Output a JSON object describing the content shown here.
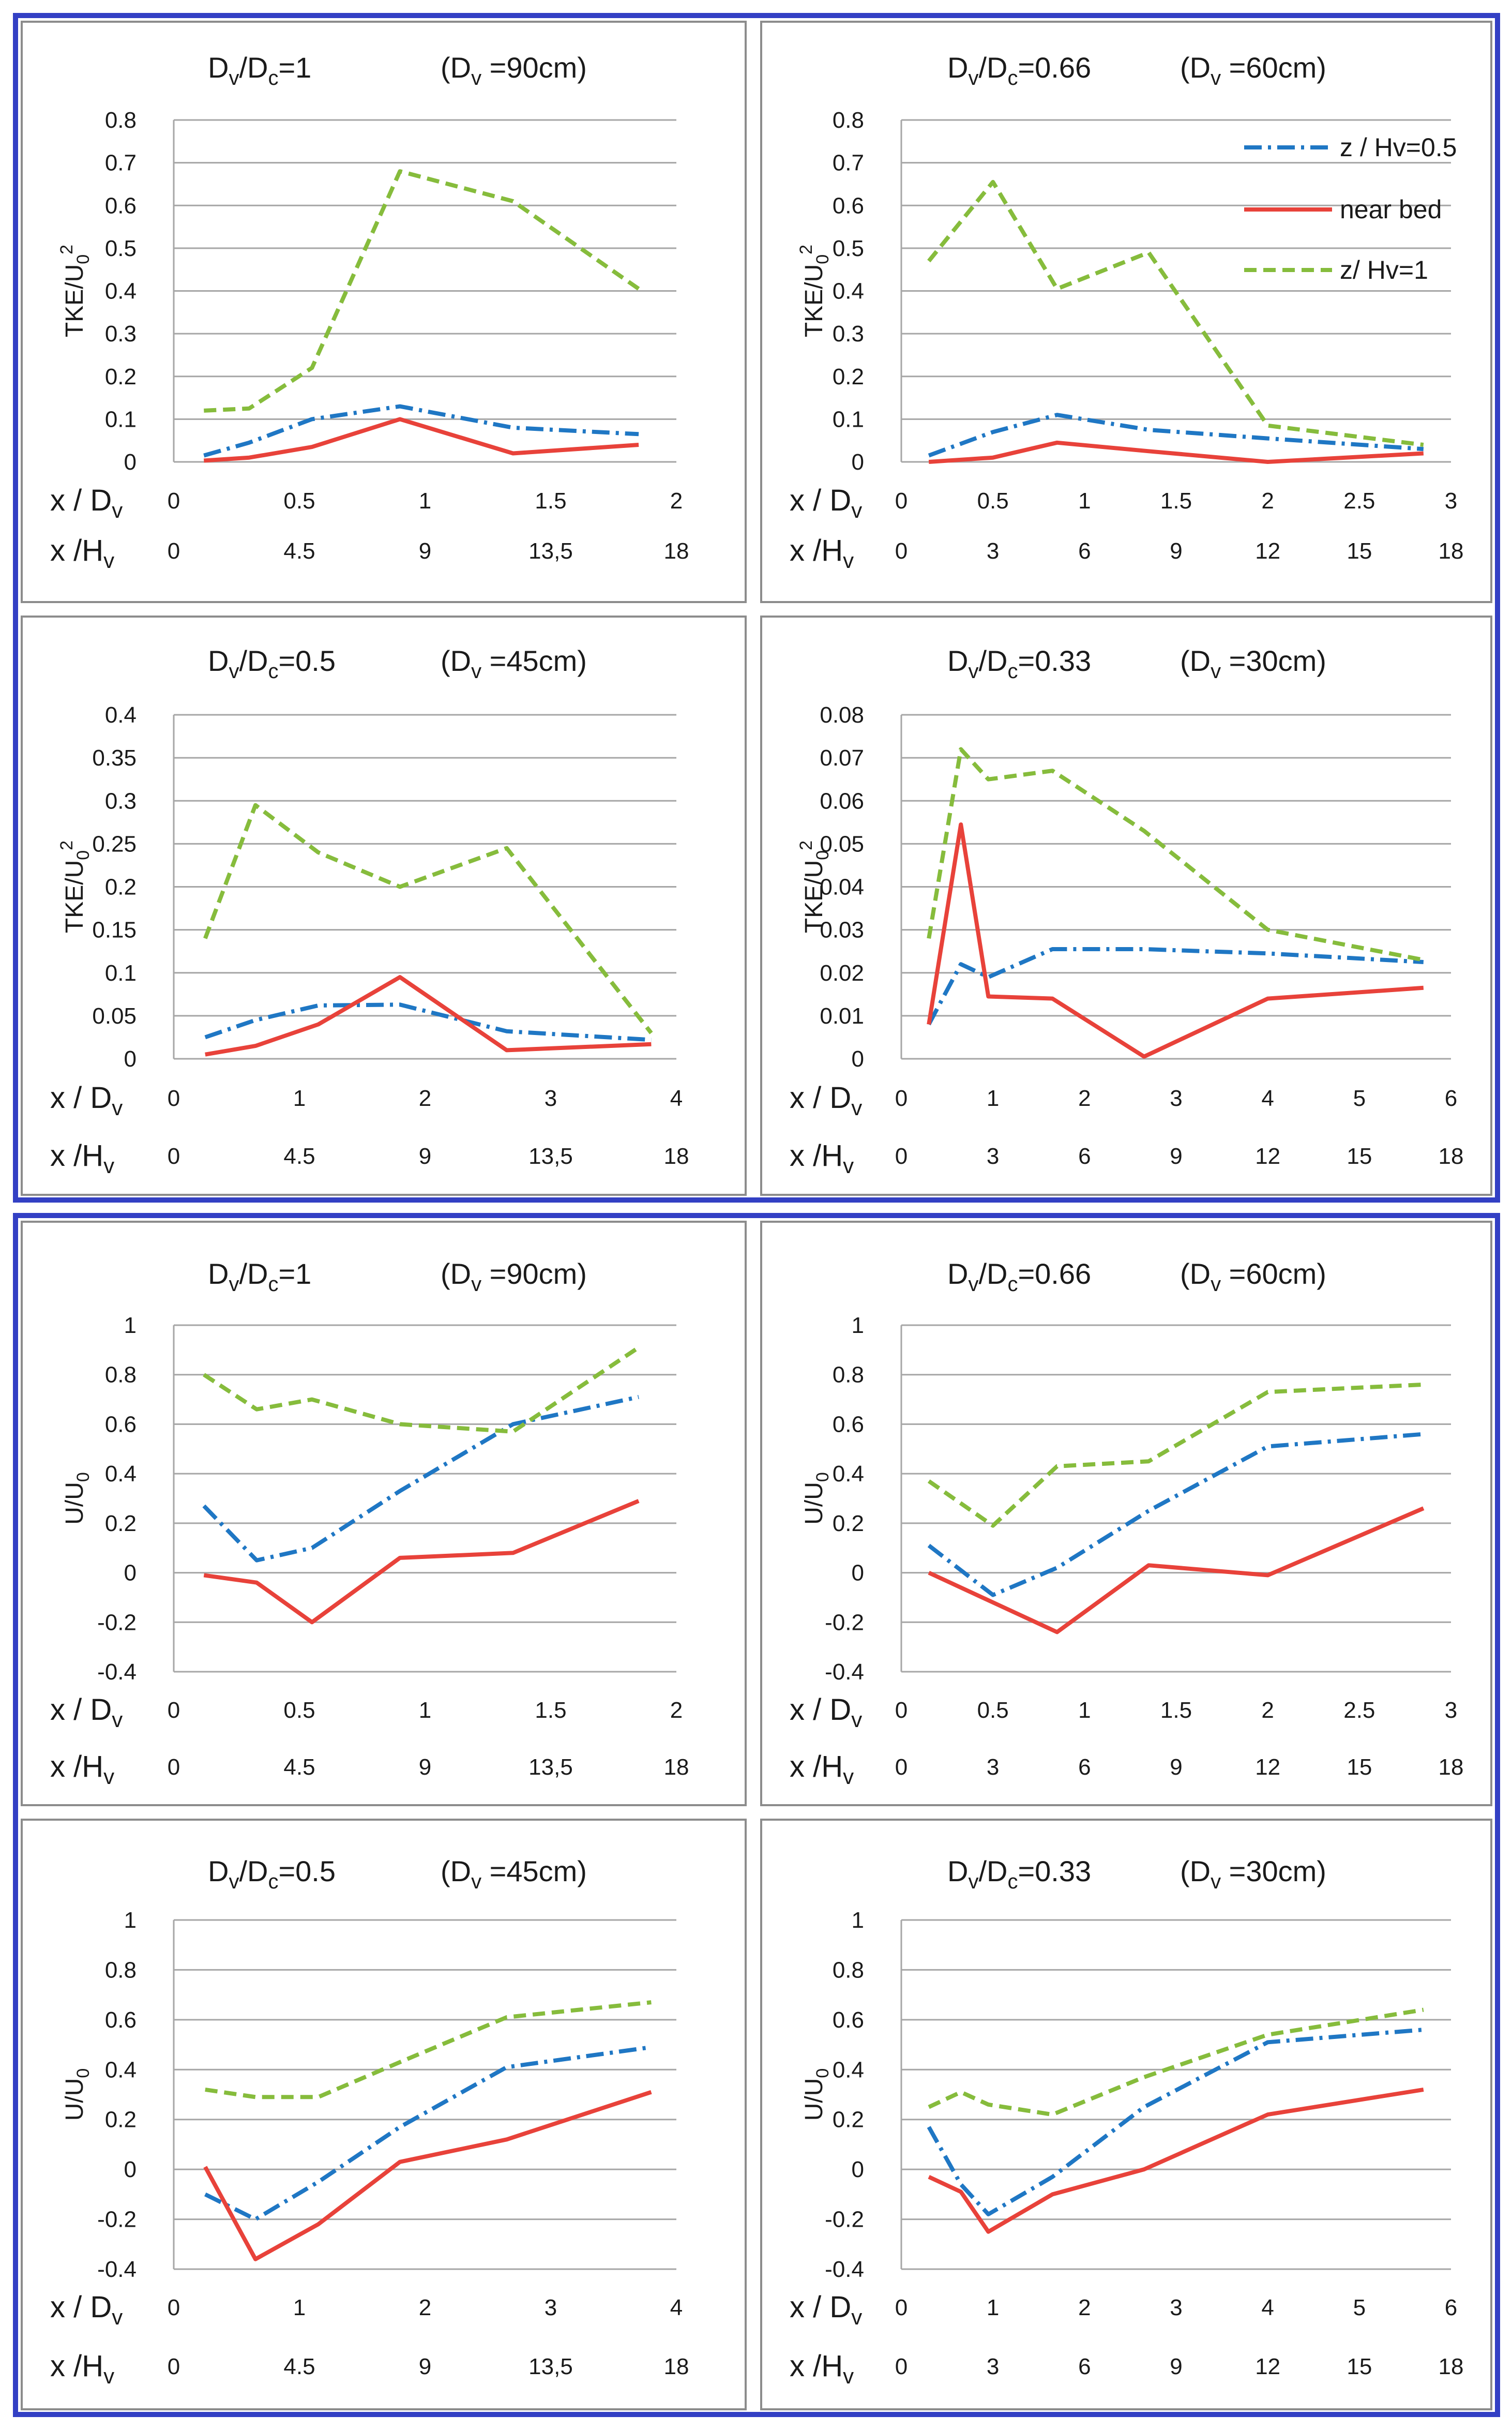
{
  "figure": {
    "legend": {
      "entries": [
        {
          "label": "z / Hv=0.5",
          "series": "s05"
        },
        {
          "label": "near bed",
          "series": "bed"
        },
        {
          "label": "z/ Hv=1",
          "series": "s1"
        }
      ]
    },
    "colors": {
      "frame": "#3340c4",
      "panel_border": "#8c8c8c",
      "grid": "#a6a6a6",
      "s05": "#1f77c4",
      "bed": "#e8423a",
      "s1": "#86bc3c",
      "text": "#1a1a1a"
    }
  },
  "chart_data": [
    {
      "id": "tke-dv90",
      "type": "line",
      "title": {
        "ratio": "1",
        "dv": "90cm"
      },
      "ylabel": "TKE/U0^2",
      "xlabel": "x / Dv",
      "x2label": "x /Hv",
      "xlim": [
        0,
        2
      ],
      "ylim": [
        0,
        0.8
      ],
      "xticks": [
        "0",
        "0.5",
        "1",
        "1.5",
        "2"
      ],
      "yticks": [
        "0",
        "0.1",
        "0.2",
        "0.3",
        "0.4",
        "0.5",
        "0.6",
        "0.7",
        "0.8"
      ],
      "x2ticks": [
        "0",
        "4.5",
        "9",
        "13,5",
        "18"
      ],
      "series": [
        {
          "name": "z / Hv=0.5",
          "key": "s05",
          "x": [
            0.12,
            0.3,
            0.55,
            0.9,
            1.35,
            1.85
          ],
          "y": [
            0.015,
            0.045,
            0.1,
            0.13,
            0.08,
            0.065
          ]
        },
        {
          "name": "near bed",
          "key": "bed",
          "x": [
            0.12,
            0.3,
            0.55,
            0.9,
            1.35,
            1.85
          ],
          "y": [
            0.003,
            0.01,
            0.035,
            0.1,
            0.02,
            0.04
          ]
        },
        {
          "name": "z/ Hv=1",
          "key": "s1",
          "x": [
            0.12,
            0.3,
            0.55,
            0.9,
            1.35,
            1.85
          ],
          "y": [
            0.12,
            0.125,
            0.22,
            0.68,
            0.61,
            0.405
          ]
        }
      ]
    },
    {
      "id": "tke-dv60",
      "type": "line",
      "title": {
        "ratio": "0.66",
        "dv": "60cm"
      },
      "ylabel": "TKE/U0^2",
      "xlabel": "x / Dv",
      "x2label": "x /Hv",
      "xlim": [
        0,
        3
      ],
      "ylim": [
        0,
        0.8
      ],
      "xticks": [
        "0",
        "0.5",
        "1",
        "1.5",
        "2",
        "2.5",
        "3"
      ],
      "yticks": [
        "0",
        "0.1",
        "0.2",
        "0.3",
        "0.4",
        "0.5",
        "0.6",
        "0.7",
        "0.8"
      ],
      "x2ticks": [
        "0",
        "3",
        "6",
        "9",
        "12",
        "15",
        "18"
      ],
      "legend": "top-right",
      "series": [
        {
          "name": "z / Hv=0.5",
          "key": "s05",
          "x": [
            0.15,
            0.5,
            0.85,
            1.35,
            2,
            2.85
          ],
          "y": [
            0.015,
            0.07,
            0.11,
            0.075,
            0.055,
            0.03
          ]
        },
        {
          "name": "near bed",
          "key": "bed",
          "x": [
            0.15,
            0.5,
            0.85,
            1.35,
            2,
            2.85
          ],
          "y": [
            0.0,
            0.01,
            0.045,
            0.025,
            0.0,
            0.02
          ]
        },
        {
          "name": "z/ Hv=1",
          "key": "s1",
          "x": [
            0.15,
            0.5,
            0.85,
            1.35,
            2,
            2.85
          ],
          "y": [
            0.47,
            0.655,
            0.405,
            0.49,
            0.085,
            0.04
          ]
        }
      ]
    },
    {
      "id": "tke-dv45",
      "type": "line",
      "title": {
        "ratio": "0.5",
        "dv": "45cm"
      },
      "ylabel": "TKE/U0^2",
      "xlabel": "x / Dv",
      "x2label": "x /Hv",
      "xlim": [
        0,
        4
      ],
      "ylim": [
        0,
        0.4
      ],
      "xticks": [
        "0",
        "1",
        "2",
        "3",
        "4"
      ],
      "yticks": [
        "0",
        "0.05",
        "0.1",
        "0.15",
        "0.2",
        "0.25",
        "0.3",
        "0.35",
        "0.4"
      ],
      "x2ticks": [
        "0",
        "4.5",
        "9",
        "13,5",
        "18"
      ],
      "series": [
        {
          "name": "z / Hv=0.5",
          "key": "s05",
          "x": [
            0.25,
            0.65,
            1.15,
            1.8,
            2.65,
            3.8
          ],
          "y": [
            0.025,
            0.045,
            0.062,
            0.063,
            0.032,
            0.022
          ]
        },
        {
          "name": "near bed",
          "key": "bed",
          "x": [
            0.25,
            0.65,
            1.15,
            1.8,
            2.65,
            3.8
          ],
          "y": [
            0.005,
            0.015,
            0.04,
            0.095,
            0.01,
            0.017
          ]
        },
        {
          "name": "z/ Hv=1",
          "key": "s1",
          "x": [
            0.25,
            0.65,
            1.15,
            1.8,
            2.65,
            3.8
          ],
          "y": [
            0.14,
            0.295,
            0.24,
            0.2,
            0.245,
            0.03
          ]
        }
      ]
    },
    {
      "id": "tke-dv30",
      "type": "line",
      "title": {
        "ratio": "0.33",
        "dv": "30cm"
      },
      "ylabel": "TKE/U0^2",
      "xlabel": "x / Dv",
      "x2label": "x /Hv",
      "xlim": [
        0,
        6
      ],
      "ylim": [
        0,
        0.08
      ],
      "xticks": [
        "0",
        "1",
        "2",
        "3",
        "4",
        "5",
        "6"
      ],
      "yticks": [
        "0",
        "0.01",
        "0.02",
        "0.03",
        "0.04",
        "0.05",
        "0.06",
        "0.07",
        "0.08"
      ],
      "x2ticks": [
        "0",
        "3",
        "6",
        "9",
        "12",
        "15",
        "18"
      ],
      "series": [
        {
          "name": "z / Hv=0.5",
          "key": "s05",
          "x": [
            0.3,
            0.65,
            0.95,
            1.65,
            2.65,
            4,
            5.7
          ],
          "y": [
            0.008,
            0.022,
            0.019,
            0.0255,
            0.0255,
            0.0245,
            0.0225
          ]
        },
        {
          "name": "near bed",
          "key": "bed",
          "x": [
            0.3,
            0.65,
            0.95,
            1.65,
            2.65,
            4,
            5.7
          ],
          "y": [
            0.008,
            0.0545,
            0.0145,
            0.014,
            0.0005,
            0.014,
            0.0165
          ]
        },
        {
          "name": "z/ Hv=1",
          "key": "s1",
          "x": [
            0.3,
            0.65,
            0.95,
            1.65,
            2.65,
            4,
            5.7
          ],
          "y": [
            0.028,
            0.072,
            0.065,
            0.067,
            0.053,
            0.03,
            0.023
          ]
        }
      ]
    },
    {
      "id": "u-dv90",
      "type": "line",
      "title": {
        "ratio": "1",
        "dv": "90cm"
      },
      "ylabel": "U/U0",
      "xlabel": "x / Dv",
      "x2label": "x /Hv",
      "xlim": [
        0,
        2
      ],
      "ylim": [
        -0.4,
        1
      ],
      "xticks": [
        "0",
        "0.5",
        "1",
        "1.5",
        "2"
      ],
      "yticks": [
        "-0.4",
        "-0.2",
        "0",
        "0.2",
        "0.4",
        "0.6",
        "0.8",
        "1"
      ],
      "x2ticks": [
        "0",
        "4.5",
        "9",
        "13,5",
        "18"
      ],
      "series": [
        {
          "name": "z / Hv=0.5",
          "key": "s05",
          "x": [
            0.12,
            0.33,
            0.55,
            0.9,
            1.35,
            1.85
          ],
          "y": [
            0.27,
            0.05,
            0.1,
            0.33,
            0.6,
            0.71
          ]
        },
        {
          "name": "near bed",
          "key": "bed",
          "x": [
            0.12,
            0.33,
            0.55,
            0.9,
            1.35,
            1.85
          ],
          "y": [
            -0.01,
            -0.04,
            -0.2,
            0.06,
            0.08,
            0.29
          ]
        },
        {
          "name": "z/ Hv=1",
          "key": "s1",
          "x": [
            0.12,
            0.33,
            0.55,
            0.9,
            1.35,
            1.85
          ],
          "y": [
            0.8,
            0.66,
            0.7,
            0.6,
            0.57,
            0.91
          ]
        }
      ]
    },
    {
      "id": "u-dv60",
      "type": "line",
      "title": {
        "ratio": "0.66",
        "dv": "60cm"
      },
      "ylabel": "U/U0",
      "xlabel": "x / Dv",
      "x2label": "x /Hv",
      "xlim": [
        0,
        3
      ],
      "ylim": [
        -0.4,
        1
      ],
      "xticks": [
        "0",
        "0.5",
        "1",
        "1.5",
        "2",
        "2.5",
        "3"
      ],
      "yticks": [
        "-0.4",
        "-0.2",
        "0",
        "0.2",
        "0.4",
        "0.6",
        "0.8",
        "1"
      ],
      "x2ticks": [
        "0",
        "3",
        "6",
        "9",
        "12",
        "15",
        "18"
      ],
      "series": [
        {
          "name": "z / Hv=0.5",
          "key": "s05",
          "x": [
            0.15,
            0.5,
            0.85,
            1.35,
            2,
            2.85
          ],
          "y": [
            0.11,
            -0.09,
            0.02,
            0.25,
            0.51,
            0.56
          ]
        },
        {
          "name": "near bed",
          "key": "bed",
          "x": [
            0.15,
            0.5,
            0.85,
            1.35,
            2,
            2.85
          ],
          "y": [
            0.0,
            -0.12,
            -0.24,
            0.03,
            -0.01,
            0.26
          ]
        },
        {
          "name": "z/ Hv=1",
          "key": "s1",
          "x": [
            0.15,
            0.5,
            0.85,
            1.35,
            2,
            2.85
          ],
          "y": [
            0.37,
            0.19,
            0.43,
            0.45,
            0.73,
            0.76
          ]
        }
      ]
    },
    {
      "id": "u-dv45",
      "type": "line",
      "title": {
        "ratio": "0.5",
        "dv": "45cm"
      },
      "ylabel": "U/U0",
      "xlabel": "x / Dv",
      "x2label": "x /Hv",
      "xlim": [
        0,
        4
      ],
      "ylim": [
        -0.4,
        1
      ],
      "xticks": [
        "0",
        "1",
        "2",
        "3",
        "4"
      ],
      "yticks": [
        "-0.4",
        "-0.2",
        "0",
        "0.2",
        "0.4",
        "0.6",
        "0.8",
        "1"
      ],
      "x2ticks": [
        "0",
        "4.5",
        "9",
        "13,5",
        "18"
      ],
      "series": [
        {
          "name": "z / Hv=0.5",
          "key": "s05",
          "x": [
            0.25,
            0.65,
            1.15,
            1.8,
            2.65,
            3.8
          ],
          "y": [
            -0.1,
            -0.2,
            -0.05,
            0.17,
            0.41,
            0.49
          ]
        },
        {
          "name": "near bed",
          "key": "bed",
          "x": [
            0.25,
            0.65,
            1.15,
            1.8,
            2.65,
            3.8
          ],
          "y": [
            0.01,
            -0.36,
            -0.22,
            0.03,
            0.12,
            0.31
          ]
        },
        {
          "name": "z/ Hv=1",
          "key": "s1",
          "x": [
            0.25,
            0.65,
            1.15,
            1.8,
            2.65,
            3.8
          ],
          "y": [
            0.32,
            0.29,
            0.29,
            0.43,
            0.61,
            0.67
          ]
        }
      ]
    },
    {
      "id": "u-dv30",
      "type": "line",
      "title": {
        "ratio": "0.33",
        "dv": "30cm"
      },
      "ylabel": "U/U0",
      "xlabel": "x / Dv",
      "x2label": "x /Hv",
      "xlim": [
        0,
        6
      ],
      "ylim": [
        -0.4,
        1
      ],
      "xticks": [
        "0",
        "1",
        "2",
        "3",
        "4",
        "5",
        "6"
      ],
      "yticks": [
        "-0.4",
        "-0.2",
        "0",
        "0.2",
        "0.4",
        "0.6",
        "0.8",
        "1"
      ],
      "x2ticks": [
        "0",
        "3",
        "6",
        "9",
        "12",
        "15",
        "18"
      ],
      "series": [
        {
          "name": "z / Hv=0.5",
          "key": "s05",
          "x": [
            0.3,
            0.65,
            0.95,
            1.65,
            2.65,
            4,
            5.7
          ],
          "y": [
            0.17,
            -0.06,
            -0.18,
            -0.03,
            0.25,
            0.51,
            0.56
          ]
        },
        {
          "name": "near bed",
          "key": "bed",
          "x": [
            0.3,
            0.65,
            0.95,
            1.65,
            2.65,
            4,
            5.7
          ],
          "y": [
            -0.03,
            -0.09,
            -0.25,
            -0.1,
            0.0,
            0.22,
            0.32
          ]
        },
        {
          "name": "z/ Hv=1",
          "key": "s1",
          "x": [
            0.3,
            0.65,
            0.95,
            1.65,
            2.65,
            4,
            5.7
          ],
          "y": [
            0.25,
            0.31,
            0.26,
            0.22,
            0.37,
            0.54,
            0.64
          ]
        }
      ]
    }
  ]
}
